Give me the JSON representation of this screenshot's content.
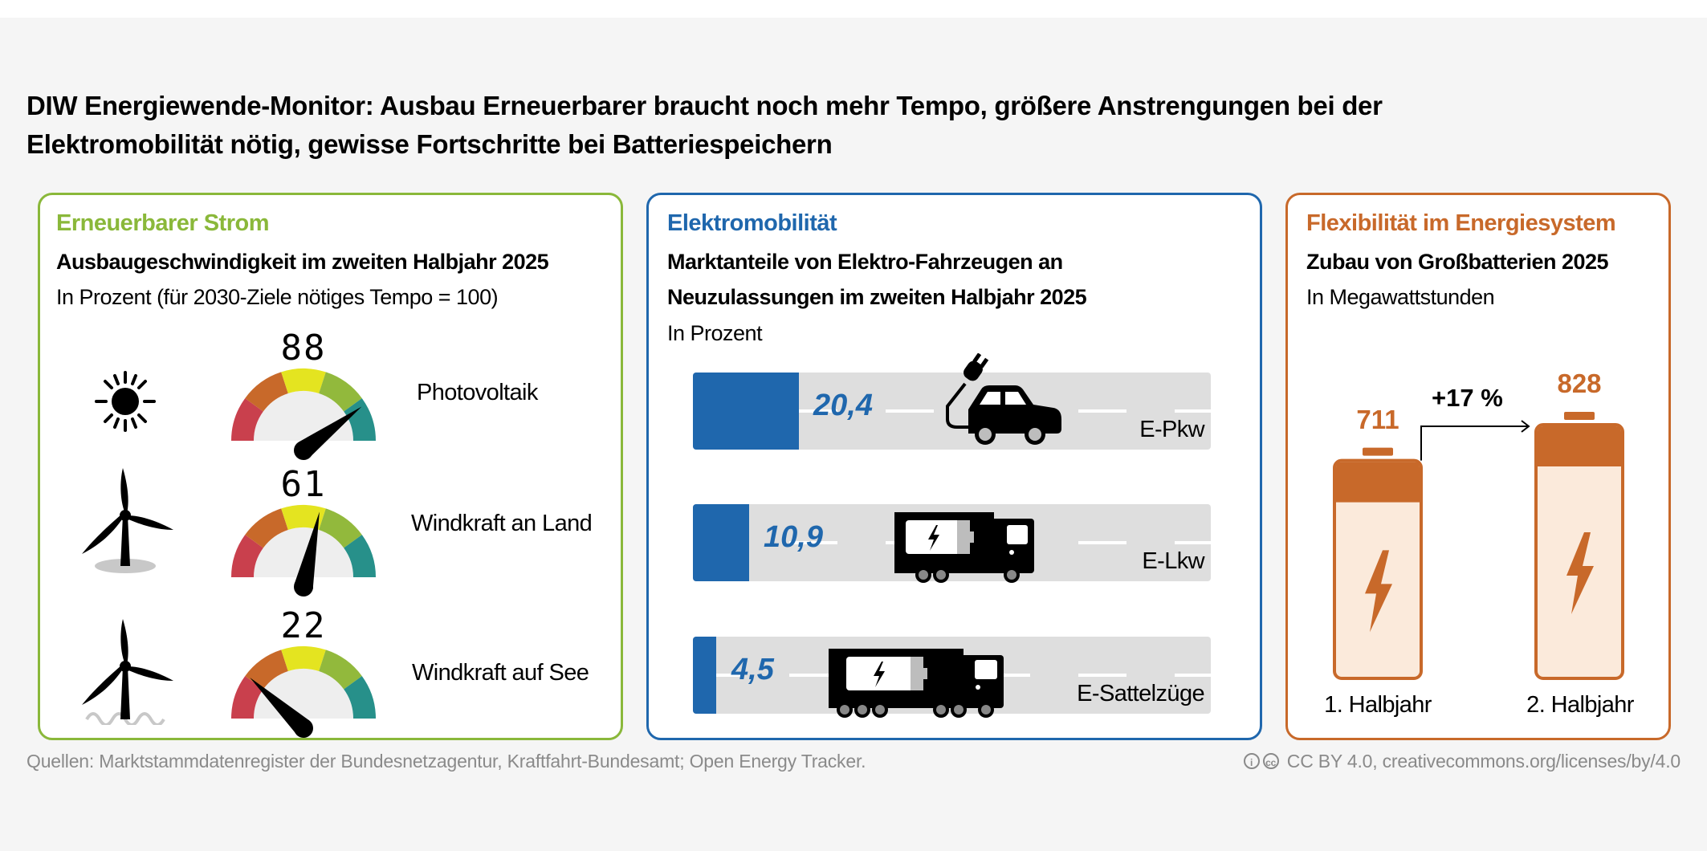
{
  "title": {
    "line1": "DIW Energiewende-Monitor: Ausbau Erneuerbarer braucht noch mehr Tempo, größere Anstrengungen bei der",
    "line2": "Elektromobilität nötig, gewisse Fortschritte bei Batteriespeichern"
  },
  "colors": {
    "renewable": "#8ab83a",
    "mobility": "#1f67ad",
    "flexibility": "#c8692a",
    "gauge_segments": [
      "#c9404d",
      "#c8692a",
      "#e4e420",
      "#92b93c",
      "#27908a"
    ],
    "gauge_face": "#eeeeee",
    "battery_fill": "#fbeadb",
    "track": "#dedede"
  },
  "renewable": {
    "heading": "Erneuerbarer Strom",
    "subtitle": "Ausbaugeschwindigkeit im zweiten Halbjahr 2025",
    "unit": "In Prozent (für 2030-Ziele nötiges Tempo = 100)",
    "items": [
      {
        "label": "Photovoltaik",
        "value": 88,
        "display": "88",
        "icon": "sun-icon"
      },
      {
        "label": "Windkraft an Land",
        "value": 61,
        "display": "61",
        "icon": "onshore-wind-turbine-icon"
      },
      {
        "label": "Windkraft auf See",
        "value": 22,
        "display": "22",
        "icon": "offshore-wind-turbine-icon"
      }
    ]
  },
  "mobility": {
    "heading": "Elektromobilität",
    "subtitle_line1": "Marktanteile von Elektro-Fahrzeugen an",
    "subtitle_line2": "Neuzulassungen im zweiten Halbjahr 2025",
    "unit": "In Prozent",
    "items": [
      {
        "label": "E-Pkw",
        "value": 20.4,
        "display": "20,4",
        "icon": "electric-car-icon"
      },
      {
        "label": "E-Lkw",
        "value": 10.9,
        "display": "10,9",
        "icon": "electric-truck-icon"
      },
      {
        "label": "E-Sattelzüge",
        "value": 4.5,
        "display": "4,5",
        "icon": "electric-semi-truck-icon"
      }
    ]
  },
  "flexibility": {
    "heading": "Flexibilität im Energiesystem",
    "subtitle": "Zubau von Großbatterien 2025",
    "unit": "In Megawattstunden",
    "change": "+17 %",
    "items": [
      {
        "label": "1. Halbjahr",
        "value": 711,
        "display": "711"
      },
      {
        "label": "2. Halbjahr",
        "value": 828,
        "display": "828"
      }
    ]
  },
  "footer": {
    "source": "Quellen: Marktstammdatenregister der Bundesnetzagentur, Kraftfahrt-Bundesamt; Open Energy Tracker.",
    "license": "CC BY 4.0, creativecommons.org/licenses/by/4.0"
  }
}
